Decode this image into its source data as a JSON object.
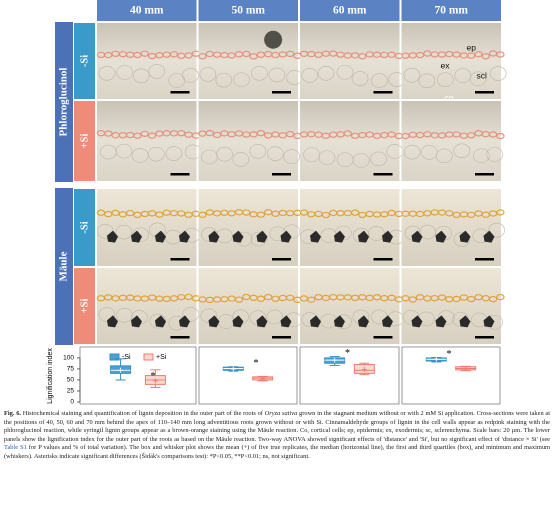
{
  "figure": {
    "columns": [
      "40 mm",
      "50 mm",
      "60 mm",
      "70 mm"
    ],
    "row_groups": [
      {
        "label": "Phloroglucinol",
        "rows": [
          "-Si",
          "+Si"
        ]
      },
      {
        "label": "Mäule",
        "rows": [
          "-Si",
          "+Si"
        ]
      }
    ],
    "annotations": [
      "ep",
      "ex",
      "scl",
      "co"
    ]
  },
  "boxplot": {
    "ylabel": "Lignification index",
    "ylim": [
      0,
      118
    ],
    "yticks": [
      0,
      25,
      50,
      75,
      100
    ],
    "legend": [
      {
        "name": "-Si",
        "color": "#2e8fc9"
      },
      {
        "name": "+Si",
        "color": "#ef7b6c"
      }
    ],
    "panels": [
      {
        "neg": {
          "min": 50,
          "q1": 65,
          "median": 72,
          "q3": 82,
          "max": 98,
          "mean": 72
        },
        "pos": {
          "min": 33,
          "q1": 40,
          "median": 50,
          "q3": 60,
          "max": 73,
          "mean": 48
        },
        "sig": "*"
      },
      {
        "neg": {
          "min": 70,
          "q1": 72,
          "median": 76,
          "q3": 79,
          "max": 80,
          "mean": 75
        },
        "pos": {
          "min": 48,
          "q1": 50,
          "median": 54,
          "q3": 57,
          "max": 58,
          "mean": 53
        },
        "sig": "*"
      },
      {
        "neg": {
          "min": 83,
          "q1": 88,
          "median": 95,
          "q3": 100,
          "max": 103,
          "mean": 95
        },
        "pos": {
          "min": 62,
          "q1": 65,
          "median": 72,
          "q3": 85,
          "max": 88,
          "mean": 74
        },
        "sig": "*"
      },
      {
        "neg": {
          "min": 91,
          "q1": 93,
          "median": 97,
          "q3": 100,
          "max": 101,
          "mean": 97
        },
        "pos": {
          "min": 71,
          "q1": 73,
          "median": 76,
          "q3": 80,
          "max": 81,
          "mean": 76
        },
        "sig": "*"
      }
    ]
  },
  "caption": {
    "label": "Fig. 6.",
    "p1": "Histochemical staining and quantification of lignin deposition in the outer part of the roots of",
    "species": "Oryza sativa",
    "p2": "grown in the stagnant medium without or with 2 mM Si application. Cross-sections were taken at the positions of 40, 50, 60 and 70 mm behind the apex of 110–140 mm long adventitious roots grown without or with Si. Cinnamaldehyde groups of lignin in the cell walls appear as redpink staining with the phloroglucinol reaction, while syringil lignin groups appear as a brown-orange staining using the Mäule reaction. Co, cortical cells; ep, epidermis; ex, exodermis; sc, sclerenchyma. Scale bars: 20 µm. The lower panels show the lignification index for the outer part of the roots as based on the Mäule reaction. Two-way ANOVA showed significant effects of 'distance' and 'Si', but no significant effect of 'distance × Si' (see",
    "link": "Table S1",
    "p3": "for P values and % of total variation). The box and whisker plot shows the mean (+) of five true replicates, the median (horizontal line), the first and third quartiles (box), and minimum and maximum (whiskers). Asterisks indicate significant differences (Šidák's comparisons test): *P<0.05, **P<0.01; ns, not significant."
  }
}
